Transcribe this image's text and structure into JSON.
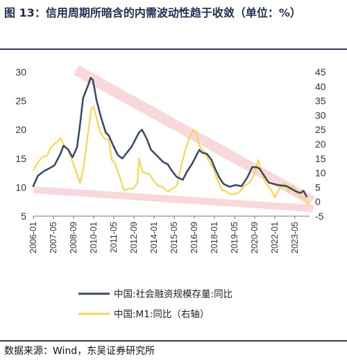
{
  "figure": {
    "title": "图 13：信用周期所暗含的内需波动性趋于收敛（单位：%）",
    "source": "数据来源：Wind，东吴证券研究所"
  },
  "colors": {
    "series_navy": "#3a4b66",
    "series_yellow": "#f7d84a",
    "band_pink": "#f2b8bd"
  },
  "chart_data": {
    "type": "line",
    "x_tick_labels": [
      "2006-01",
      "2007-05",
      "2008-09",
      "2010-01",
      "2011-05",
      "2012-09",
      "2014-01",
      "2015-05",
      "2016-09",
      "2018-01",
      "2019-05",
      "2020-09",
      "2022-01",
      "2023-05"
    ],
    "x_range": [
      2006.0,
      2024.3
    ],
    "y_left": {
      "ticks": [
        "5",
        "10",
        "15",
        "20",
        "25",
        "30"
      ],
      "range": [
        5,
        30
      ]
    },
    "y_right": {
      "ticks": [
        "-5",
        "0",
        "5",
        "10",
        "15",
        "20",
        "25",
        "30",
        "35",
        "40",
        "45"
      ],
      "range": [
        -5,
        45
      ]
    },
    "grid": false,
    "legend_position": "bottom",
    "series": [
      {
        "name": "中国:社会融资规模存量:同比",
        "axis": "left",
        "color": "#3a4b66",
        "x": [
          2006.0,
          2006.3,
          2006.7,
          2007.0,
          2007.4,
          2007.8,
          2008.0,
          2008.3,
          2008.6,
          2008.9,
          2009.1,
          2009.3,
          2009.6,
          2009.8,
          2009.95,
          2010.2,
          2010.5,
          2010.8,
          2011.0,
          2011.3,
          2011.6,
          2011.9,
          2012.2,
          2012.5,
          2012.8,
          2013.0,
          2013.2,
          2013.5,
          2013.8,
          2014.0,
          2014.3,
          2014.6,
          2014.9,
          2015.2,
          2015.5,
          2015.9,
          2016.2,
          2016.5,
          2016.8,
          2017.0,
          2017.2,
          2017.5,
          2017.8,
          2018.0,
          2018.3,
          2018.6,
          2019.0,
          2019.4,
          2019.8,
          2020.2,
          2020.5,
          2020.8,
          2021.0,
          2021.3,
          2021.6,
          2021.9,
          2022.2,
          2022.5,
          2022.8,
          2023.0,
          2023.4,
          2023.7,
          2023.9,
          2024.1
        ],
        "y": [
          10.2,
          12.0,
          12.8,
          13.2,
          13.8,
          15.8,
          17.2,
          16.6,
          15.2,
          17.0,
          21.0,
          25.5,
          27.5,
          29.0,
          28.6,
          25.0,
          22.0,
          19.5,
          19.0,
          17.2,
          15.6,
          15.0,
          16.0,
          17.0,
          18.5,
          19.5,
          20.0,
          18.5,
          16.5,
          16.0,
          15.2,
          14.4,
          14.0,
          12.8,
          11.8,
          11.3,
          12.8,
          14.0,
          15.5,
          16.5,
          16.0,
          15.8,
          14.8,
          13.5,
          11.8,
          10.6,
          10.1,
          10.4,
          10.2,
          11.8,
          13.5,
          13.5,
          13.2,
          12.0,
          10.8,
          10.6,
          10.4,
          10.3,
          10.2,
          9.9,
          9.3,
          9.0,
          9.4,
          8.4
        ]
      },
      {
        "name": "中国:M1:同比（右轴）",
        "axis": "right",
        "color": "#f7d84a",
        "x": [
          2006.0,
          2006.3,
          2006.6,
          2006.9,
          2007.2,
          2007.5,
          2007.8,
          2008.0,
          2008.3,
          2008.6,
          2008.9,
          2009.1,
          2009.3,
          2009.5,
          2009.7,
          2009.85,
          2010.0,
          2010.2,
          2010.4,
          2010.7,
          2011.0,
          2011.2,
          2011.4,
          2011.7,
          2012.0,
          2012.3,
          2012.6,
          2012.9,
          2013.0,
          2013.2,
          2013.4,
          2013.7,
          2014.0,
          2014.3,
          2014.6,
          2014.9,
          2015.2,
          2015.5,
          2015.8,
          2016.1,
          2016.4,
          2016.6,
          2016.8,
          2017.0,
          2017.3,
          2017.6,
          2017.9,
          2018.2,
          2018.5,
          2018.8,
          2019.1,
          2019.4,
          2019.7,
          2020.0,
          2020.3,
          2020.6,
          2020.9,
          2021.1,
          2021.4,
          2021.7,
          2022.0,
          2022.3,
          2022.6,
          2022.9,
          2023.2,
          2023.5,
          2023.8,
          2024.0,
          2024.2
        ],
        "y": [
          11.0,
          13.5,
          15.5,
          16.0,
          19.0,
          20.5,
          22.0,
          20.0,
          18.0,
          14.0,
          9.5,
          6.5,
          11.0,
          18.5,
          27.0,
          32.5,
          33.0,
          29.0,
          24.5,
          22.0,
          21.5,
          14.5,
          13.5,
          9.0,
          4.0,
          4.5,
          4.5,
          6.5,
          15.0,
          10.5,
          10.0,
          9.5,
          7.0,
          5.5,
          5.0,
          3.5,
          4.5,
          5.5,
          12.5,
          18.5,
          23.0,
          25.0,
          24.0,
          19.5,
          17.5,
          14.5,
          12.0,
          7.5,
          4.0,
          3.5,
          2.5,
          2.8,
          3.5,
          5.5,
          6.5,
          9.0,
          14.5,
          10.5,
          6.5,
          4.5,
          1.5,
          4.5,
          6.5,
          3.5,
          5.5,
          2.5,
          1.5,
          1.3,
          -1.0
        ]
      }
    ]
  }
}
